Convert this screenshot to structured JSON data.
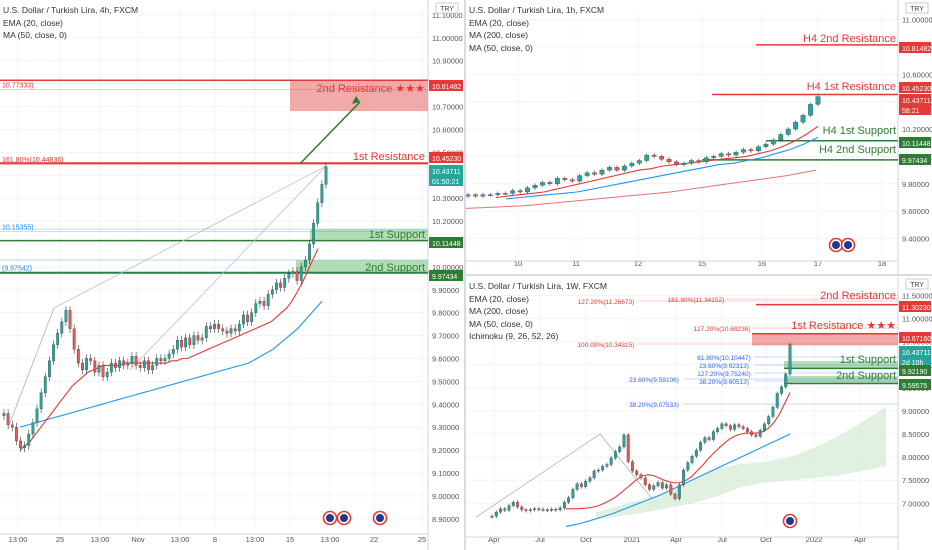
{
  "chart_data": [
    {
      "type": "candlestick",
      "title": "U.S. Dollar / Turkish Lira, 4h, FXCM",
      "indicators": [
        "EMA (20, close)",
        "MA (50, close, 0)"
      ],
      "currency": "TRY",
      "y_ticks": [
        "11.10000",
        "11.00000",
        "10.90000",
        "10.80000",
        "10.70000",
        "10.60000",
        "10.50000",
        "10.40000",
        "10.30000",
        "10.20000",
        "10.10000",
        "10.00000",
        "9.90000",
        "9.80000",
        "9.70000",
        "9.60000",
        "9.50000",
        "9.40000",
        "9.30000",
        "9.20000",
        "9.10000",
        "9.00000",
        "8.90000"
      ],
      "x_ticks": [
        "13:00",
        "25",
        "13:00",
        "Nov",
        "13:00",
        "8",
        "13:00",
        "15",
        "13:00",
        "22",
        "25"
      ],
      "ylim": [
        8.86,
        11.13
      ],
      "price_tags": [
        {
          "text": "10.81482",
          "color": "#e53935"
        },
        {
          "text": "10.45230",
          "color": "#e53935"
        },
        {
          "text": "10.43711",
          "color": "#26a69a"
        },
        {
          "text": "01:50:21",
          "color": "#26a69a"
        },
        {
          "text": "10.11448",
          "color": "#2e7d32"
        },
        {
          "text": "9.97434",
          "color": "#2e7d32"
        }
      ],
      "levels": [
        {
          "label": "2nd Resistance ★★★",
          "value": 10.81482,
          "zone": [
            10.68,
            10.81482
          ],
          "color": "#e53935"
        },
        {
          "label": "1st Resistance",
          "value": 10.4523,
          "color": "#e53935"
        },
        {
          "label": "1st Support",
          "value": 10.11448,
          "zone": [
            10.11448,
            10.165
          ],
          "color": "#2e7d32"
        },
        {
          "label": "2nd Support",
          "value": 9.97434,
          "zone": [
            9.97434,
            10.03
          ],
          "color": "#2e7d32"
        }
      ],
      "fib_labels": [
        {
          "text": "10.77333)",
          "value": 10.77333
        },
        {
          "text": "161.80%(10.44836)",
          "value": 10.44836
        },
        {
          "text": "10.15355)",
          "value": 10.15355
        },
        {
          "text": "(9.97542)",
          "value": 9.97542
        }
      ],
      "close": [
        9.36,
        9.31,
        9.3,
        9.24,
        9.21,
        9.22,
        9.27,
        9.32,
        9.38,
        9.45,
        9.52,
        9.59,
        9.66,
        9.71,
        9.76,
        9.81,
        9.73,
        9.64,
        9.58,
        9.55,
        9.6,
        9.59,
        9.54,
        9.57,
        9.52,
        9.54,
        9.58,
        9.56,
        9.59,
        9.57,
        9.58,
        9.61,
        9.57,
        9.56,
        9.59,
        9.55,
        9.57,
        9.6,
        9.59,
        9.6,
        9.62,
        9.64,
        9.68,
        9.65,
        9.69,
        9.66,
        9.7,
        9.68,
        9.69,
        9.74,
        9.73,
        9.75,
        9.73,
        9.72,
        9.71,
        9.73,
        9.72,
        9.75,
        9.79,
        9.76,
        9.8,
        9.84,
        9.85,
        9.83,
        9.88,
        9.9,
        9.93,
        9.91,
        9.95,
        9.97,
        9.98,
        9.94,
        10.0,
        10.03,
        10.1,
        10.19,
        10.28,
        10.36,
        10.43711
      ],
      "ema20": [
        9.2,
        9.22,
        9.24,
        9.27,
        9.3,
        9.33,
        9.36,
        9.39,
        9.42,
        9.45,
        9.48,
        9.5,
        9.52,
        9.54,
        9.55,
        9.56,
        9.57,
        9.57,
        9.57,
        9.57,
        9.58,
        9.58,
        9.58,
        9.58,
        9.58,
        9.58,
        9.58,
        9.58,
        9.58,
        9.59,
        9.59,
        9.6,
        9.6,
        9.61,
        9.62,
        9.63,
        9.64,
        9.65,
        9.66,
        9.67,
        9.68,
        9.69,
        9.7,
        9.71,
        9.72,
        9.73,
        9.74,
        9.75,
        9.76,
        9.78,
        9.8,
        9.82,
        9.85,
        9.89,
        9.93,
        9.98,
        10.03,
        10.08
      ],
      "ma50": [
        9.3,
        9.31,
        9.32,
        9.33,
        9.34,
        9.35,
        9.36,
        9.37,
        9.38,
        9.39,
        9.4,
        9.41,
        9.42,
        9.43,
        9.44,
        9.45,
        9.46,
        9.47,
        9.48,
        9.49,
        9.5,
        9.51,
        9.52,
        9.53,
        9.54,
        9.55,
        9.56,
        9.57,
        9.58,
        9.6,
        9.62,
        9.64,
        9.67,
        9.7,
        9.73,
        9.77,
        9.81,
        9.85
      ]
    },
    {
      "type": "candlestick",
      "title": "U.S. Dollar / Turkish Lira, 1h, FXCM",
      "indicators": [
        "EMA (20, close)",
        "MA (200, close)",
        "MA (50, close, 0)"
      ],
      "currency": "TRY",
      "y_ticks": [
        "11.00000",
        "10.80000",
        "10.60000",
        "10.40000",
        "10.20000",
        "10.00000",
        "9.80000",
        "9.60000",
        "9.40000"
      ],
      "x_ticks": [
        "10",
        "11",
        "12",
        "15",
        "16",
        "17",
        "18"
      ],
      "ylim": [
        9.28,
        11.04
      ],
      "price_tags": [
        {
          "text": "10.81482",
          "color": "#e53935"
        },
        {
          "text": "10.45230",
          "color": "#e53935"
        },
        {
          "text": "10.43711",
          "color": "#e53935"
        },
        {
          "text": "58:21",
          "color": "#e53935"
        },
        {
          "text": "10.11448",
          "color": "#2e7d32"
        },
        {
          "text": "9.97434",
          "color": "#2e7d32"
        }
      ],
      "levels": [
        {
          "label": "H4 2nd Resistance",
          "value": 10.81482,
          "color": "#e53935"
        },
        {
          "label": "H4 1st Resistance",
          "value": 10.4523,
          "color": "#e53935"
        },
        {
          "label": "H4 1st Support",
          "value": 10.11448,
          "color": "#2e7d32"
        },
        {
          "label": "H4 2nd Support",
          "value": 9.97434,
          "color": "#2e7d32"
        }
      ],
      "close": [
        9.72,
        9.71,
        9.72,
        9.72,
        9.73,
        9.73,
        9.75,
        9.74,
        9.77,
        9.79,
        9.81,
        9.8,
        9.84,
        9.83,
        9.82,
        9.86,
        9.88,
        9.87,
        9.9,
        9.92,
        9.9,
        9.93,
        9.95,
        9.97,
        10.01,
        10.0,
        9.98,
        9.96,
        9.94,
        9.95,
        9.97,
        9.96,
        9.99,
        10.0,
        10.02,
        10.01,
        10.03,
        10.05,
        10.04,
        10.07,
        10.09,
        10.12,
        10.16,
        10.2,
        10.25,
        10.3,
        10.38,
        10.43711
      ],
      "ema20": [
        9.7,
        9.71,
        9.72,
        9.73,
        9.74,
        9.76,
        9.78,
        9.8,
        9.82,
        9.84,
        9.86,
        9.88,
        9.9,
        9.91,
        9.93,
        9.94,
        9.95,
        9.96,
        9.97,
        9.98,
        9.99,
        10.0,
        10.02,
        10.04,
        10.07,
        10.11,
        10.16,
        10.22
      ],
      "ma50": [
        9.69,
        9.7,
        9.71,
        9.72,
        9.73,
        9.74,
        9.76,
        9.78,
        9.8,
        9.82,
        9.84,
        9.86,
        9.88,
        9.9,
        9.92,
        9.94,
        9.95,
        9.97,
        9.99,
        10.02,
        10.05,
        10.09,
        10.14
      ],
      "ma200": [
        9.62,
        9.63,
        9.64,
        9.66,
        9.68,
        9.7,
        9.72,
        9.74,
        9.77,
        9.8,
        9.83,
        9.86,
        9.9
      ]
    },
    {
      "type": "candlestick",
      "title": "U.S. Dollar / Turkish Lira, 1W, FXCM",
      "indicators": [
        "EMA (20, close)",
        "MA (200, close)",
        "MA (50, close, 0)",
        "Ichimoku (9, 26, 52, 26)"
      ],
      "currency": "TRY",
      "y_ticks": [
        "11.50000",
        "11.00000",
        "10.50000",
        "10.00000",
        "9.50000",
        "9.00000",
        "8.50000",
        "8.00000",
        "7.50000",
        "7.00000"
      ],
      "x_ticks": [
        "Apr",
        "Jul",
        "Oct",
        "2021",
        "Apr",
        "Jul",
        "Oct",
        "2022",
        "Apr"
      ],
      "ylim": [
        6.4,
        11.62
      ],
      "price_tags": [
        {
          "text": "11.30230",
          "color": "#e53935"
        },
        {
          "text": "10.67160",
          "color": "#e53935"
        },
        {
          "text": "10.43711",
          "color": "#26a69a"
        },
        {
          "text": "2d 10h",
          "color": "#26a69a"
        },
        {
          "text": "9.92190",
          "color": "#2e7d32"
        },
        {
          "text": "9.59575",
          "color": "#2e7d32"
        }
      ],
      "levels": [
        {
          "label": "2nd Resistance",
          "value": 11.3023,
          "color": "#e53935"
        },
        {
          "label": "1st Resistance ★★★",
          "value": 10.6716,
          "zone": [
            10.42,
            10.6716
          ],
          "color": "#e53935"
        },
        {
          "label": "1st Support",
          "value": 9.9219,
          "zone": [
            9.9219,
            10.08
          ],
          "color": "#2e7d32"
        },
        {
          "label": "2nd Support",
          "value": 9.59575,
          "zone": [
            9.59575,
            9.76
          ],
          "color": "#2e7d32"
        }
      ],
      "fib_labels": [
        {
          "text": "127.20%(11.26673)",
          "value": 11.26673,
          "color": "#e53935"
        },
        {
          "text": "161.80%(11.34152)",
          "value": 11.34152,
          "color": "#e53935"
        },
        {
          "text": "127.20%(10.68236)",
          "value": 10.68236,
          "color": "#e53935"
        },
        {
          "text": "100.00%(10.34315)",
          "value": 10.34315,
          "color": "#e53935"
        },
        {
          "text": "61.80%(10.10447)",
          "value": 10.10447,
          "color": "#2962ff"
        },
        {
          "text": "23.60%(9.92313)",
          "value": 9.92313,
          "color": "#2962ff"
        },
        {
          "text": "127.20%(9.75240)",
          "value": 9.7524,
          "color": "#2962ff"
        },
        {
          "text": "23.60%(9.59106)",
          "value": 9.59106,
          "color": "#2962ff"
        },
        {
          "text": "38.20%(9.60513)",
          "value": 9.60513,
          "color": "#2962ff"
        },
        {
          "text": "38.20%(9.07533)",
          "value": 9.07533,
          "color": "#2962ff"
        }
      ],
      "close": [
        6.72,
        6.81,
        6.88,
        6.85,
        6.95,
        7.02,
        6.92,
        6.86,
        6.84,
        6.86,
        6.88,
        6.87,
        6.86,
        6.85,
        6.87,
        6.86,
        6.9,
        7.02,
        7.12,
        7.3,
        7.42,
        7.36,
        7.48,
        7.55,
        7.7,
        7.72,
        7.8,
        7.84,
        7.98,
        8.12,
        8.22,
        8.48,
        7.9,
        7.7,
        7.62,
        7.55,
        7.4,
        7.3,
        7.38,
        7.45,
        7.33,
        7.4,
        7.2,
        7.1,
        7.4,
        7.72,
        7.88,
        8.02,
        8.15,
        8.32,
        8.42,
        8.38,
        8.55,
        8.62,
        8.72,
        8.68,
        8.6,
        8.7,
        8.66,
        8.62,
        8.55,
        8.48,
        8.45,
        8.58,
        8.72,
        8.88,
        9.08,
        9.38,
        9.52,
        9.8,
        10.43711
      ],
      "ema20": [
        6.88,
        6.88,
        6.88,
        6.89,
        6.9,
        6.92,
        6.95,
        7.0,
        7.06,
        7.13,
        7.22,
        7.32,
        7.42,
        7.52,
        7.6,
        7.62,
        7.6,
        7.55,
        7.5,
        7.46,
        7.44,
        7.45,
        7.5,
        7.58,
        7.7,
        7.82,
        7.96,
        8.08,
        8.2,
        8.3,
        8.4,
        8.46,
        8.5,
        8.52,
        8.52,
        8.52,
        8.55,
        8.62,
        8.74,
        8.92,
        9.15,
        9.4
      ],
      "ma50": [
        6.5,
        6.55,
        6.62,
        6.7,
        6.78,
        6.88,
        6.98,
        7.08,
        7.18,
        7.3,
        7.42,
        7.54,
        7.66,
        7.78,
        7.9,
        8.02,
        8.14,
        8.26,
        8.38,
        8.5
      ],
      "ichimoku_cloud_top": [
        6.8,
        6.95,
        7.1,
        7.25,
        7.5,
        7.75,
        7.85,
        7.9,
        8.0,
        8.2,
        8.45,
        8.75,
        9.1
      ],
      "ichimoku_cloud_bottom": [
        6.65,
        6.72,
        6.8,
        6.9,
        7.0,
        7.15,
        7.35,
        7.45,
        7.5,
        7.55,
        7.6,
        7.7,
        7.8
      ]
    }
  ]
}
